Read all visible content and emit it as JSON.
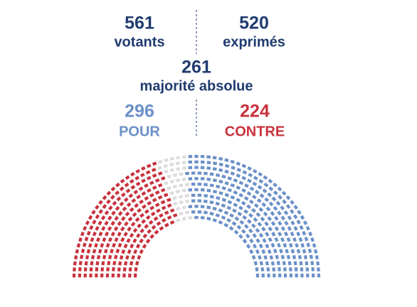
{
  "chart_data": {
    "type": "parliament",
    "stats": [
      {
        "value": 561,
        "label": "votants"
      },
      {
        "value": 520,
        "label": "exprimés"
      },
      {
        "value": 261,
        "label": "majorité absolue"
      }
    ],
    "text_color": "#1f3b6f",
    "series": [
      {
        "name": "POUR",
        "color": "#6b90c8",
        "values": [
          296
        ]
      },
      {
        "name": "CONTRE",
        "color": "#c8323d",
        "values": [
          224
        ]
      }
    ],
    "other_color": "#dcdcdc"
  }
}
